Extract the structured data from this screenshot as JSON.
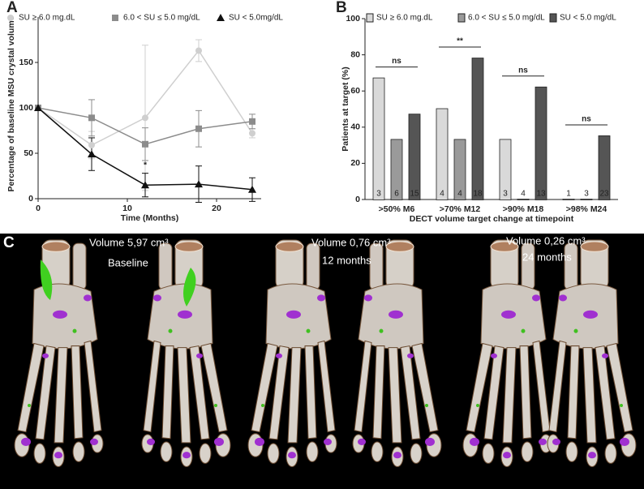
{
  "chart_data": [
    {
      "type": "line",
      "panel_label": "A",
      "xlabel": "Time (Months)",
      "ylabel": "Percentage of baseline MSU crystal volume",
      "x": [
        0,
        6,
        12,
        18,
        24
      ],
      "series": [
        {
          "name": "SU ≥ 6.0 mg.dL",
          "color": "#cfcfcf",
          "marker": "circle",
          "values": [
            100,
            59,
            89,
            163,
            72
          ],
          "errors": [
            0,
            15,
            80,
            12,
            5
          ]
        },
        {
          "name": "6.0 < SU ≤ 5.0 mg/dL",
          "color": "#8c8c8c",
          "marker": "square",
          "values": [
            100,
            89,
            60,
            77,
            85
          ],
          "errors": [
            0,
            20,
            18,
            20,
            8
          ]
        },
        {
          "name": "SU < 5.0mg/dL",
          "color": "#111111",
          "marker": "triangle",
          "values": [
            100,
            49,
            15,
            16,
            10
          ],
          "errors": [
            0,
            18,
            13,
            20,
            13
          ]
        }
      ],
      "annotations": [
        "*"
      ],
      "xlim": [
        0,
        25
      ],
      "xticks": [
        0,
        10,
        20
      ],
      "ylim": [
        0,
        200
      ],
      "yticks": [
        0,
        50,
        100,
        150
      ]
    },
    {
      "type": "bar",
      "panel_label": "B",
      "xlabel": "DECT volume target change at timepoint",
      "ylabel": "Patients at target (%)",
      "categories": [
        ">50% M6",
        ">70% M12",
        ">90% M18",
        ">98% M24"
      ],
      "series": [
        {
          "name": "SU ≥ 6.0 mg.dL",
          "color": "#d9d9d9",
          "values": [
            67,
            50,
            33,
            0
          ],
          "counts": [
            3,
            4,
            3,
            1
          ]
        },
        {
          "name": "6.0 < SU ≤ 5.0 mg/dL",
          "color": "#9a9a9a",
          "values": [
            33,
            33,
            0,
            0
          ],
          "counts": [
            6,
            4,
            4,
            3
          ]
        },
        {
          "name": "SU < 5.0 mg/dL",
          "color": "#555555",
          "values": [
            47,
            78,
            62,
            35
          ],
          "counts": [
            15,
            18,
            13,
            23
          ]
        }
      ],
      "significance": [
        "ns",
        "**",
        "ns",
        "ns"
      ],
      "ylim": [
        0,
        100
      ],
      "yticks": [
        0,
        20,
        40,
        60,
        80,
        100
      ]
    }
  ],
  "image_panel": {
    "label": "C",
    "captions": [
      {
        "volume": "Volume 5,97 cm³",
        "time": "Baseline"
      },
      {
        "volume": "Volume 0,76 cm³",
        "time": "12 months"
      },
      {
        "volume": "Volume 0,26 cm³",
        "time": "24 months"
      }
    ]
  }
}
